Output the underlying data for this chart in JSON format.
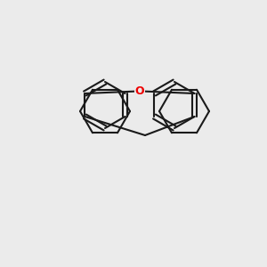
{
  "background_color": "#ebebeb",
  "bond_color": "#1a1a1a",
  "oxygen_color": "#ee0000",
  "boron_color": "#00aa00",
  "figsize": [
    3.0,
    3.0
  ],
  "dpi": 100
}
